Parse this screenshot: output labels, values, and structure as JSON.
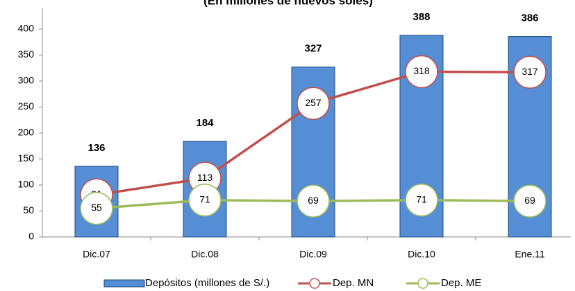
{
  "chart_data": {
    "type": "combo",
    "title": "(En millones de nuevos soles)",
    "categories": [
      "Dic.07",
      "Dic.08",
      "Dic.09",
      "Dic.10",
      "Ene.11"
    ],
    "series": [
      {
        "name": "Depósitos (millones de S/.)",
        "type": "bar",
        "color": "#558ed5",
        "values": [
          136,
          184,
          327,
          388,
          386
        ]
      },
      {
        "name": "Dep. MN",
        "type": "line",
        "color": "#c0504d",
        "values": [
          81,
          113,
          257,
          318,
          317
        ]
      },
      {
        "name": "Dep. ME",
        "type": "line",
        "color": "#9bbb59",
        "values": [
          55,
          71,
          69,
          71,
          69
        ]
      }
    ],
    "ylim": [
      0,
      400
    ],
    "yticks": [
      0,
      50,
      100,
      150,
      200,
      250,
      300,
      350,
      400
    ],
    "grid": false
  }
}
